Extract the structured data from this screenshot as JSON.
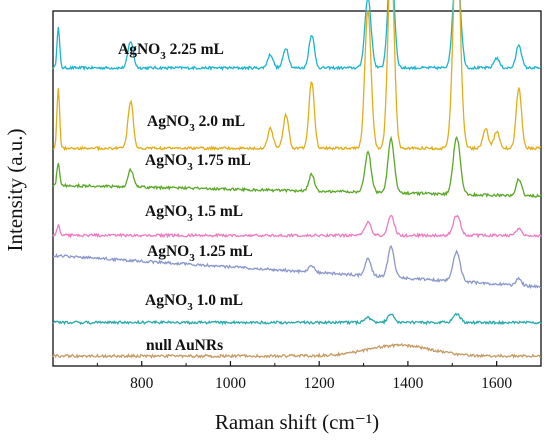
{
  "chart_data": {
    "type": "line",
    "title": "",
    "xlabel": "Raman shift (cm⁻¹)",
    "ylabel": "Intensity (a.u.)",
    "xlim": [
      600,
      1700
    ],
    "x_ticks": [
      "800",
      "1000",
      "1200",
      "1400",
      "1600"
    ],
    "x_tick_values": [
      800,
      1000,
      1200,
      1400,
      1600
    ],
    "y_ticks_shown": false,
    "grid": false,
    "legend": "none",
    "series": [
      {
        "name": "AgNO3 2.25 mL",
        "label_parts": [
          "AgNO",
          "3",
          " 2.25 mL"
        ],
        "color": "#1bb4cf",
        "offset": 86,
        "baseline_slope": 0.0,
        "peaks": [
          [
            612,
            12,
            3
          ],
          [
            775,
            8,
            6
          ],
          [
            1090,
            4,
            6
          ],
          [
            1125,
            6,
            6
          ],
          [
            1183,
            10,
            6
          ],
          [
            1310,
            21,
            7
          ],
          [
            1362,
            33,
            7
          ],
          [
            1510,
            32,
            8
          ],
          [
            1600,
            3,
            6
          ],
          [
            1650,
            7,
            6
          ]
        ]
      },
      {
        "name": "AgNO3 2.0 mL",
        "label_parts": [
          "AgNO",
          "3",
          " 2.0 mL"
        ],
        "color": "#e3ad18",
        "offset": 62,
        "baseline_slope": 0.0,
        "peaks": [
          [
            612,
            18,
            3
          ],
          [
            775,
            14,
            6
          ],
          [
            1090,
            6,
            6
          ],
          [
            1125,
            10,
            6
          ],
          [
            1183,
            20,
            6
          ],
          [
            1310,
            41,
            7
          ],
          [
            1362,
            58,
            7
          ],
          [
            1510,
            64,
            8
          ],
          [
            1575,
            6,
            6
          ],
          [
            1600,
            5,
            6
          ],
          [
            1650,
            18,
            6
          ]
        ]
      },
      {
        "name": "AgNO3 1.75 mL",
        "label_parts": [
          "AgNO",
          "3",
          " 1.75 mL"
        ],
        "color": "#5aa827",
        "offset": 51,
        "baseline_slope": -0.003,
        "peaks": [
          [
            612,
            7,
            3
          ],
          [
            775,
            5,
            6
          ],
          [
            1183,
            5,
            6
          ],
          [
            1310,
            12,
            7
          ],
          [
            1362,
            16,
            7
          ],
          [
            1510,
            17,
            8
          ],
          [
            1650,
            5,
            6
          ]
        ]
      },
      {
        "name": "AgNO3 1.5 mL",
        "label_parts": [
          "AgNO",
          "3",
          " 1.5 mL"
        ],
        "color": "#f07ac2",
        "offset": 36,
        "baseline_slope": 0.0,
        "peaks": [
          [
            612,
            3,
            3
          ],
          [
            1310,
            4,
            7
          ],
          [
            1362,
            6,
            7
          ],
          [
            1510,
            6,
            8
          ],
          [
            1650,
            2,
            6
          ]
        ]
      },
      {
        "name": "AgNO3 1.25 mL",
        "label_parts": [
          "AgNO",
          "3",
          " 1.25 mL"
        ],
        "color": "#8a97cc",
        "offset": 30,
        "baseline_slope": -0.0085,
        "peaks": [
          [
            1183,
            2,
            6
          ],
          [
            1310,
            5,
            7
          ],
          [
            1362,
            9,
            7
          ],
          [
            1510,
            9,
            8
          ],
          [
            1650,
            2,
            6
          ]
        ]
      },
      {
        "name": "AgNO3 1.0 mL",
        "label_parts": [
          "AgNO",
          "3",
          " 1.0 mL"
        ],
        "color": "#26a9a9",
        "offset": 10,
        "baseline_slope": 0.0,
        "peaks": [
          [
            1310,
            1.5,
            7
          ],
          [
            1362,
            2.5,
            7
          ],
          [
            1510,
            2.5,
            8
          ]
        ]
      },
      {
        "name": "null AuNRs",
        "label_parts": [
          "null AuNRs",
          "",
          ""
        ],
        "color": "#c59a62",
        "offset": 0,
        "baseline_slope": 0.0,
        "peaks": [
          [
            1380,
            3.2,
            70
          ]
        ]
      }
    ]
  }
}
